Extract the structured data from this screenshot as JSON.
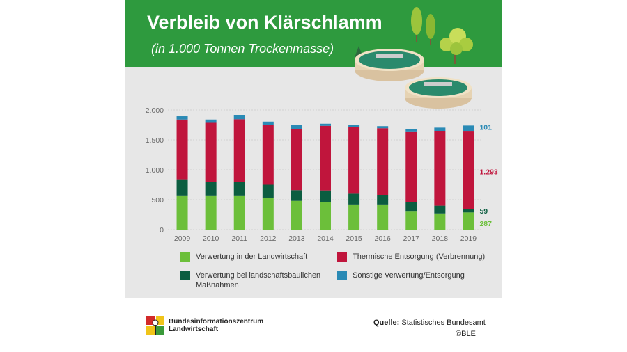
{
  "header": {
    "title": "Verbleib von Klärschlamm",
    "subtitle": "(in 1.000 Tonnen Trockenmasse)"
  },
  "colors": {
    "header_bg": "#2e9a3e",
    "landwirtschaft": "#6cbf3a",
    "landschaftsbau": "#0b5d40",
    "thermisch": "#c0153c",
    "sonstige": "#2a8ab5"
  },
  "chart_data": {
    "type": "bar",
    "stacked": true,
    "categories": [
      "2009",
      "2010",
      "2011",
      "2012",
      "2013",
      "2014",
      "2015",
      "2016",
      "2017",
      "2018",
      "2019"
    ],
    "series": [
      {
        "name": "Verwertung in der Landwirtschaft",
        "color": "#6cbf3a",
        "values": [
          560,
          560,
          560,
          535,
          480,
          465,
          420,
          420,
          300,
          270,
          287
        ]
      },
      {
        "name": "Verwertung bei landschaftsbaulichen Maßnahmen",
        "color": "#0b5d40",
        "values": [
          270,
          240,
          240,
          215,
          180,
          190,
          180,
          150,
          160,
          130,
          59
        ]
      },
      {
        "name": "Thermische Entsorgung (Verbrennung)",
        "color": "#c0153c",
        "values": [
          1010,
          985,
          1045,
          1000,
          1025,
          1080,
          1110,
          1125,
          1170,
          1250,
          1293
        ]
      },
      {
        "name": "Sonstige Verwertung/Entsorgung",
        "color": "#2a8ab5",
        "values": [
          55,
          55,
          65,
          55,
          60,
          35,
          40,
          35,
          45,
          55,
          101
        ]
      }
    ],
    "ylim": [
      0,
      2000
    ],
    "yticks": [
      0,
      500,
      1000,
      1500,
      2000
    ],
    "ytick_labels": [
      "0",
      "500",
      "1.000",
      "1.500",
      "2.000"
    ],
    "grid": true,
    "annotations": [
      {
        "series": "Sonstige Verwertung/Entsorgung",
        "text": "101",
        "color": "#2a8ab5"
      },
      {
        "series": "Thermische Entsorgung (Verbrennung)",
        "text": "1.293",
        "color": "#c0153c"
      },
      {
        "series": "Verwertung bei landschaftsbaulichen Maßnahmen",
        "text": "59",
        "color": "#0b5d40"
      },
      {
        "series": "Verwertung in der Landwirtschaft",
        "text": "287",
        "color": "#6cbf3a"
      }
    ],
    "legend_position": "bottom"
  },
  "legend": [
    {
      "label": "Verwertung in der Landwirtschaft",
      "color": "#6cbf3a"
    },
    {
      "label": "Thermische Entsorgung (Verbrennung)",
      "color": "#c0153c"
    },
    {
      "label": "Verwertung bei landschaftsbaulichen Maßnahmen",
      "color": "#0b5d40"
    },
    {
      "label": "Sonstige Verwertung/Entsorgung",
      "color": "#2a8ab5"
    }
  ],
  "footer": {
    "logo_text": "Bundesinformationszentrum Landwirtschaft",
    "source_label": "Quelle:",
    "source_value": "Statistisches Bundesamt",
    "copyright": "©BLE"
  }
}
